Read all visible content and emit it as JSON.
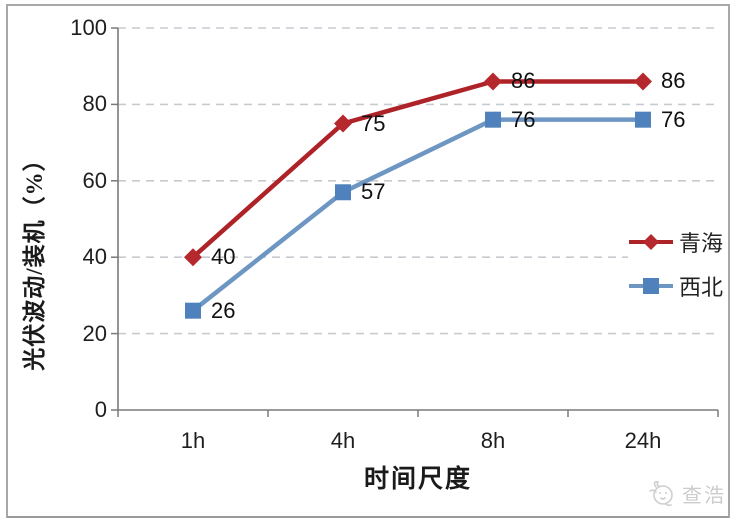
{
  "chart_data": {
    "type": "line",
    "title": "",
    "categories": [
      "1h",
      "4h",
      "8h",
      "24h"
    ],
    "series": [
      {
        "name": "青海",
        "values": [
          40,
          75,
          86,
          86
        ],
        "marker": "diamond",
        "color": "#ae2328",
        "marker_color": "#b5282d"
      },
      {
        "name": "西北",
        "values": [
          26,
          57,
          76,
          76
        ],
        "marker": "square",
        "color": "#6d96c3",
        "marker_color": "#4f81bd"
      }
    ],
    "xlabel": "时间尺度",
    "ylabel": "光伏波动/装机（%）",
    "ylim": [
      0,
      100
    ],
    "yticks": [
      0,
      20,
      40,
      60,
      80,
      100
    ],
    "grid": "horizontal-dashed",
    "legend_position": "right-inside",
    "data_labels": [
      [
        40,
        75,
        86,
        86
      ],
      [
        26,
        57,
        76,
        76
      ]
    ]
  },
  "colors": {
    "axis": "#7a7a7a",
    "grid": "#c6cbd0",
    "text": "#1f1f1f",
    "frame": "#a8a8a8",
    "watermark": "#cccccc"
  },
  "watermark": {
    "icon": "bird-face-icon",
    "label": "查浩"
  }
}
